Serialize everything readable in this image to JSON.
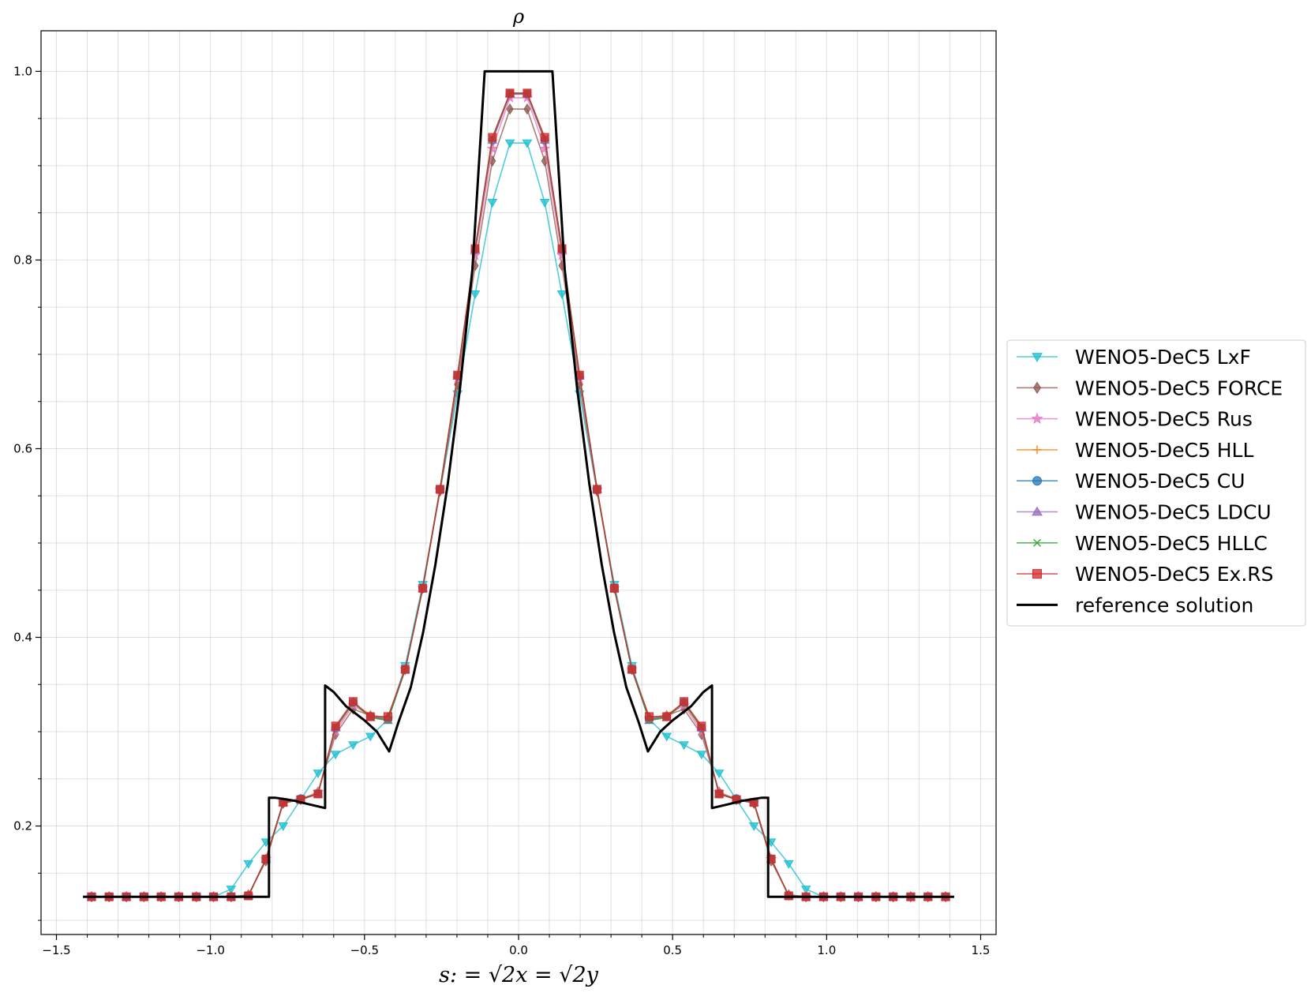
{
  "chart_data": {
    "type": "line",
    "title": "ρ",
    "xlabel": "s: = √2x = √2y",
    "ylabel": "",
    "xlim": [
      -1.55,
      1.55
    ],
    "ylim": [
      0.085,
      1.043
    ],
    "xticks": [
      -1.5,
      -1.0,
      -0.5,
      0.0,
      0.5,
      1.0,
      1.5
    ],
    "xtick_labels": [
      "−1.5",
      "−1.0",
      "−0.5",
      "0.0",
      "0.5",
      "1.0",
      "1.5"
    ],
    "yticks": [
      0.2,
      0.4,
      0.6,
      0.8,
      1.0
    ],
    "ytick_labels": [
      "0.2",
      "0.4",
      "0.6",
      "0.8",
      "1.0"
    ],
    "grid": true,
    "legend_position": "outside-right",
    "series_order": [
      "LxF",
      "FORCE",
      "Rus",
      "HLL",
      "CU",
      "LDCU",
      "HLLC",
      "ExRS",
      "ref"
    ],
    "marker_x": [
      -1.386,
      -1.329,
      -1.273,
      -1.216,
      -1.16,
      -1.103,
      -1.046,
      -0.99,
      -0.933,
      -0.877,
      -0.82,
      -0.764,
      -0.707,
      -0.651,
      -0.594,
      -0.537,
      -0.481,
      -0.424,
      -0.368,
      -0.311,
      -0.255,
      -0.198,
      -0.141,
      -0.085,
      -0.028,
      0.028,
      0.085,
      0.141,
      0.198,
      0.255,
      0.311,
      0.368,
      0.424,
      0.481,
      0.537,
      0.594,
      0.651,
      0.707,
      0.764,
      0.82,
      0.877,
      0.933,
      0.99,
      1.046,
      1.103,
      1.16,
      1.216,
      1.273,
      1.329,
      1.386
    ],
    "series": [
      {
        "key": "LxF",
        "name": "WENO5-DeC5 LxF",
        "color": "#17becf",
        "marker": "triangle-down",
        "y": [
          0.125,
          0.125,
          0.125,
          0.125,
          0.125,
          0.125,
          0.125,
          0.125,
          0.133,
          0.16,
          0.183,
          0.2,
          0.228,
          0.256,
          0.276,
          0.286,
          0.295,
          0.313,
          0.37,
          0.456,
          0.555,
          0.658,
          0.764,
          0.861,
          0.924,
          0.924,
          0.861,
          0.764,
          0.658,
          0.555,
          0.456,
          0.37,
          0.313,
          0.295,
          0.286,
          0.276,
          0.256,
          0.228,
          0.2,
          0.183,
          0.16,
          0.133,
          0.125,
          0.125,
          0.125,
          0.125,
          0.125,
          0.125,
          0.125,
          0.125
        ]
      },
      {
        "key": "FORCE",
        "name": "WENO5-DeC5 FORCE",
        "color": "#8c564b",
        "marker": "diamond",
        "y": [
          0.125,
          0.125,
          0.125,
          0.125,
          0.125,
          0.125,
          0.125,
          0.125,
          0.125,
          0.127,
          0.163,
          0.224,
          0.228,
          0.236,
          0.297,
          0.324,
          0.317,
          0.315,
          0.366,
          0.452,
          0.555,
          0.668,
          0.794,
          0.905,
          0.96,
          0.96,
          0.905,
          0.794,
          0.668,
          0.555,
          0.452,
          0.366,
          0.315,
          0.317,
          0.324,
          0.297,
          0.236,
          0.228,
          0.224,
          0.163,
          0.127,
          0.125,
          0.125,
          0.125,
          0.125,
          0.125,
          0.125,
          0.125,
          0.125,
          0.125
        ]
      },
      {
        "key": "Rus",
        "name": "WENO5-DeC5 Rus",
        "color": "#e377c2",
        "marker": "star",
        "y": [
          0.125,
          0.125,
          0.125,
          0.125,
          0.125,
          0.125,
          0.125,
          0.125,
          0.125,
          0.126,
          0.165,
          0.225,
          0.228,
          0.236,
          0.3,
          0.328,
          0.317,
          0.313,
          0.366,
          0.452,
          0.556,
          0.674,
          0.805,
          0.918,
          0.972,
          0.972,
          0.918,
          0.805,
          0.674,
          0.556,
          0.452,
          0.366,
          0.313,
          0.317,
          0.328,
          0.3,
          0.236,
          0.228,
          0.225,
          0.165,
          0.126,
          0.125,
          0.125,
          0.125,
          0.125,
          0.125,
          0.125,
          0.125,
          0.125,
          0.125
        ]
      },
      {
        "key": "HLL",
        "name": "WENO5-DeC5 HLL",
        "color": "#ff7f0e",
        "marker": "plus",
        "y": [
          0.125,
          0.125,
          0.125,
          0.125,
          0.125,
          0.125,
          0.125,
          0.125,
          0.125,
          0.126,
          0.165,
          0.225,
          0.229,
          0.235,
          0.303,
          0.33,
          0.318,
          0.314,
          0.366,
          0.452,
          0.557,
          0.676,
          0.81,
          0.926,
          0.976,
          0.976,
          0.926,
          0.81,
          0.676,
          0.557,
          0.452,
          0.366,
          0.314,
          0.318,
          0.33,
          0.303,
          0.235,
          0.229,
          0.225,
          0.165,
          0.126,
          0.125,
          0.125,
          0.125,
          0.125,
          0.125,
          0.125,
          0.125,
          0.125,
          0.125
        ]
      },
      {
        "key": "CU",
        "name": "WENO5-DeC5 CU",
        "color": "#1f77b4",
        "marker": "circle",
        "y": [
          0.125,
          0.125,
          0.125,
          0.125,
          0.125,
          0.125,
          0.125,
          0.125,
          0.125,
          0.126,
          0.165,
          0.225,
          0.229,
          0.234,
          0.304,
          0.331,
          0.316,
          0.313,
          0.366,
          0.452,
          0.557,
          0.677,
          0.811,
          0.927,
          0.976,
          0.976,
          0.927,
          0.811,
          0.677,
          0.557,
          0.452,
          0.366,
          0.313,
          0.316,
          0.331,
          0.304,
          0.234,
          0.229,
          0.225,
          0.165,
          0.126,
          0.125,
          0.125,
          0.125,
          0.125,
          0.125,
          0.125,
          0.125,
          0.125,
          0.125
        ]
      },
      {
        "key": "LDCU",
        "name": "WENO5-DeC5 LDCU",
        "color": "#9467bd",
        "marker": "triangle-up",
        "y": [
          0.125,
          0.125,
          0.125,
          0.125,
          0.125,
          0.125,
          0.125,
          0.125,
          0.125,
          0.126,
          0.165,
          0.225,
          0.228,
          0.234,
          0.304,
          0.331,
          0.315,
          0.312,
          0.366,
          0.452,
          0.557,
          0.677,
          0.811,
          0.927,
          0.976,
          0.976,
          0.927,
          0.811,
          0.677,
          0.557,
          0.452,
          0.366,
          0.312,
          0.315,
          0.331,
          0.304,
          0.234,
          0.228,
          0.225,
          0.165,
          0.126,
          0.125,
          0.125,
          0.125,
          0.125,
          0.125,
          0.125,
          0.125,
          0.125,
          0.125
        ]
      },
      {
        "key": "HLLC",
        "name": "WENO5-DeC5 HLLC",
        "color": "#2ca02c",
        "marker": "x",
        "y": [
          0.125,
          0.125,
          0.125,
          0.125,
          0.125,
          0.125,
          0.125,
          0.125,
          0.125,
          0.126,
          0.165,
          0.225,
          0.228,
          0.234,
          0.305,
          0.331,
          0.315,
          0.312,
          0.366,
          0.452,
          0.557,
          0.678,
          0.812,
          0.929,
          0.977,
          0.977,
          0.929,
          0.812,
          0.678,
          0.557,
          0.452,
          0.366,
          0.312,
          0.315,
          0.331,
          0.305,
          0.234,
          0.228,
          0.225,
          0.165,
          0.126,
          0.125,
          0.125,
          0.125,
          0.125,
          0.125,
          0.125,
          0.125,
          0.125,
          0.125
        ]
      },
      {
        "key": "ExRS",
        "name": "WENO5-DeC5 Ex.RS",
        "color": "#d62728",
        "marker": "square",
        "y": [
          0.125,
          0.125,
          0.125,
          0.125,
          0.125,
          0.125,
          0.125,
          0.125,
          0.125,
          0.126,
          0.165,
          0.225,
          0.228,
          0.234,
          0.306,
          0.332,
          0.316,
          0.316,
          0.366,
          0.452,
          0.557,
          0.678,
          0.812,
          0.93,
          0.977,
          0.977,
          0.93,
          0.812,
          0.678,
          0.557,
          0.452,
          0.366,
          0.316,
          0.316,
          0.332,
          0.306,
          0.234,
          0.228,
          0.225,
          0.165,
          0.126,
          0.125,
          0.125,
          0.125,
          0.125,
          0.125,
          0.125,
          0.125,
          0.125,
          0.125
        ]
      }
    ],
    "reference": {
      "key": "ref",
      "name": "reference solution",
      "color": "#000000",
      "x": [
        -1.414,
        -0.81,
        -0.81,
        -0.79,
        -0.73,
        -0.68,
        -0.628,
        -0.628,
        -0.6,
        -0.56,
        -0.5,
        -0.46,
        -0.42,
        -0.39,
        -0.35,
        -0.31,
        -0.27,
        -0.23,
        -0.19,
        -0.15,
        -0.11,
        0.11,
        0.15,
        0.19,
        0.23,
        0.27,
        0.31,
        0.35,
        0.39,
        0.42,
        0.46,
        0.5,
        0.56,
        0.6,
        0.628,
        0.628,
        0.68,
        0.73,
        0.79,
        0.81,
        0.81,
        1.414
      ],
      "y": [
        0.125,
        0.125,
        0.23,
        0.23,
        0.227,
        0.223,
        0.219,
        0.349,
        0.342,
        0.327,
        0.312,
        0.3,
        0.279,
        0.31,
        0.347,
        0.405,
        0.477,
        0.562,
        0.664,
        0.79,
        1.0,
        1.0,
        0.79,
        0.664,
        0.562,
        0.477,
        0.405,
        0.347,
        0.31,
        0.279,
        0.3,
        0.312,
        0.327,
        0.342,
        0.349,
        0.219,
        0.223,
        0.227,
        0.23,
        0.23,
        0.125,
        0.125
      ]
    }
  }
}
